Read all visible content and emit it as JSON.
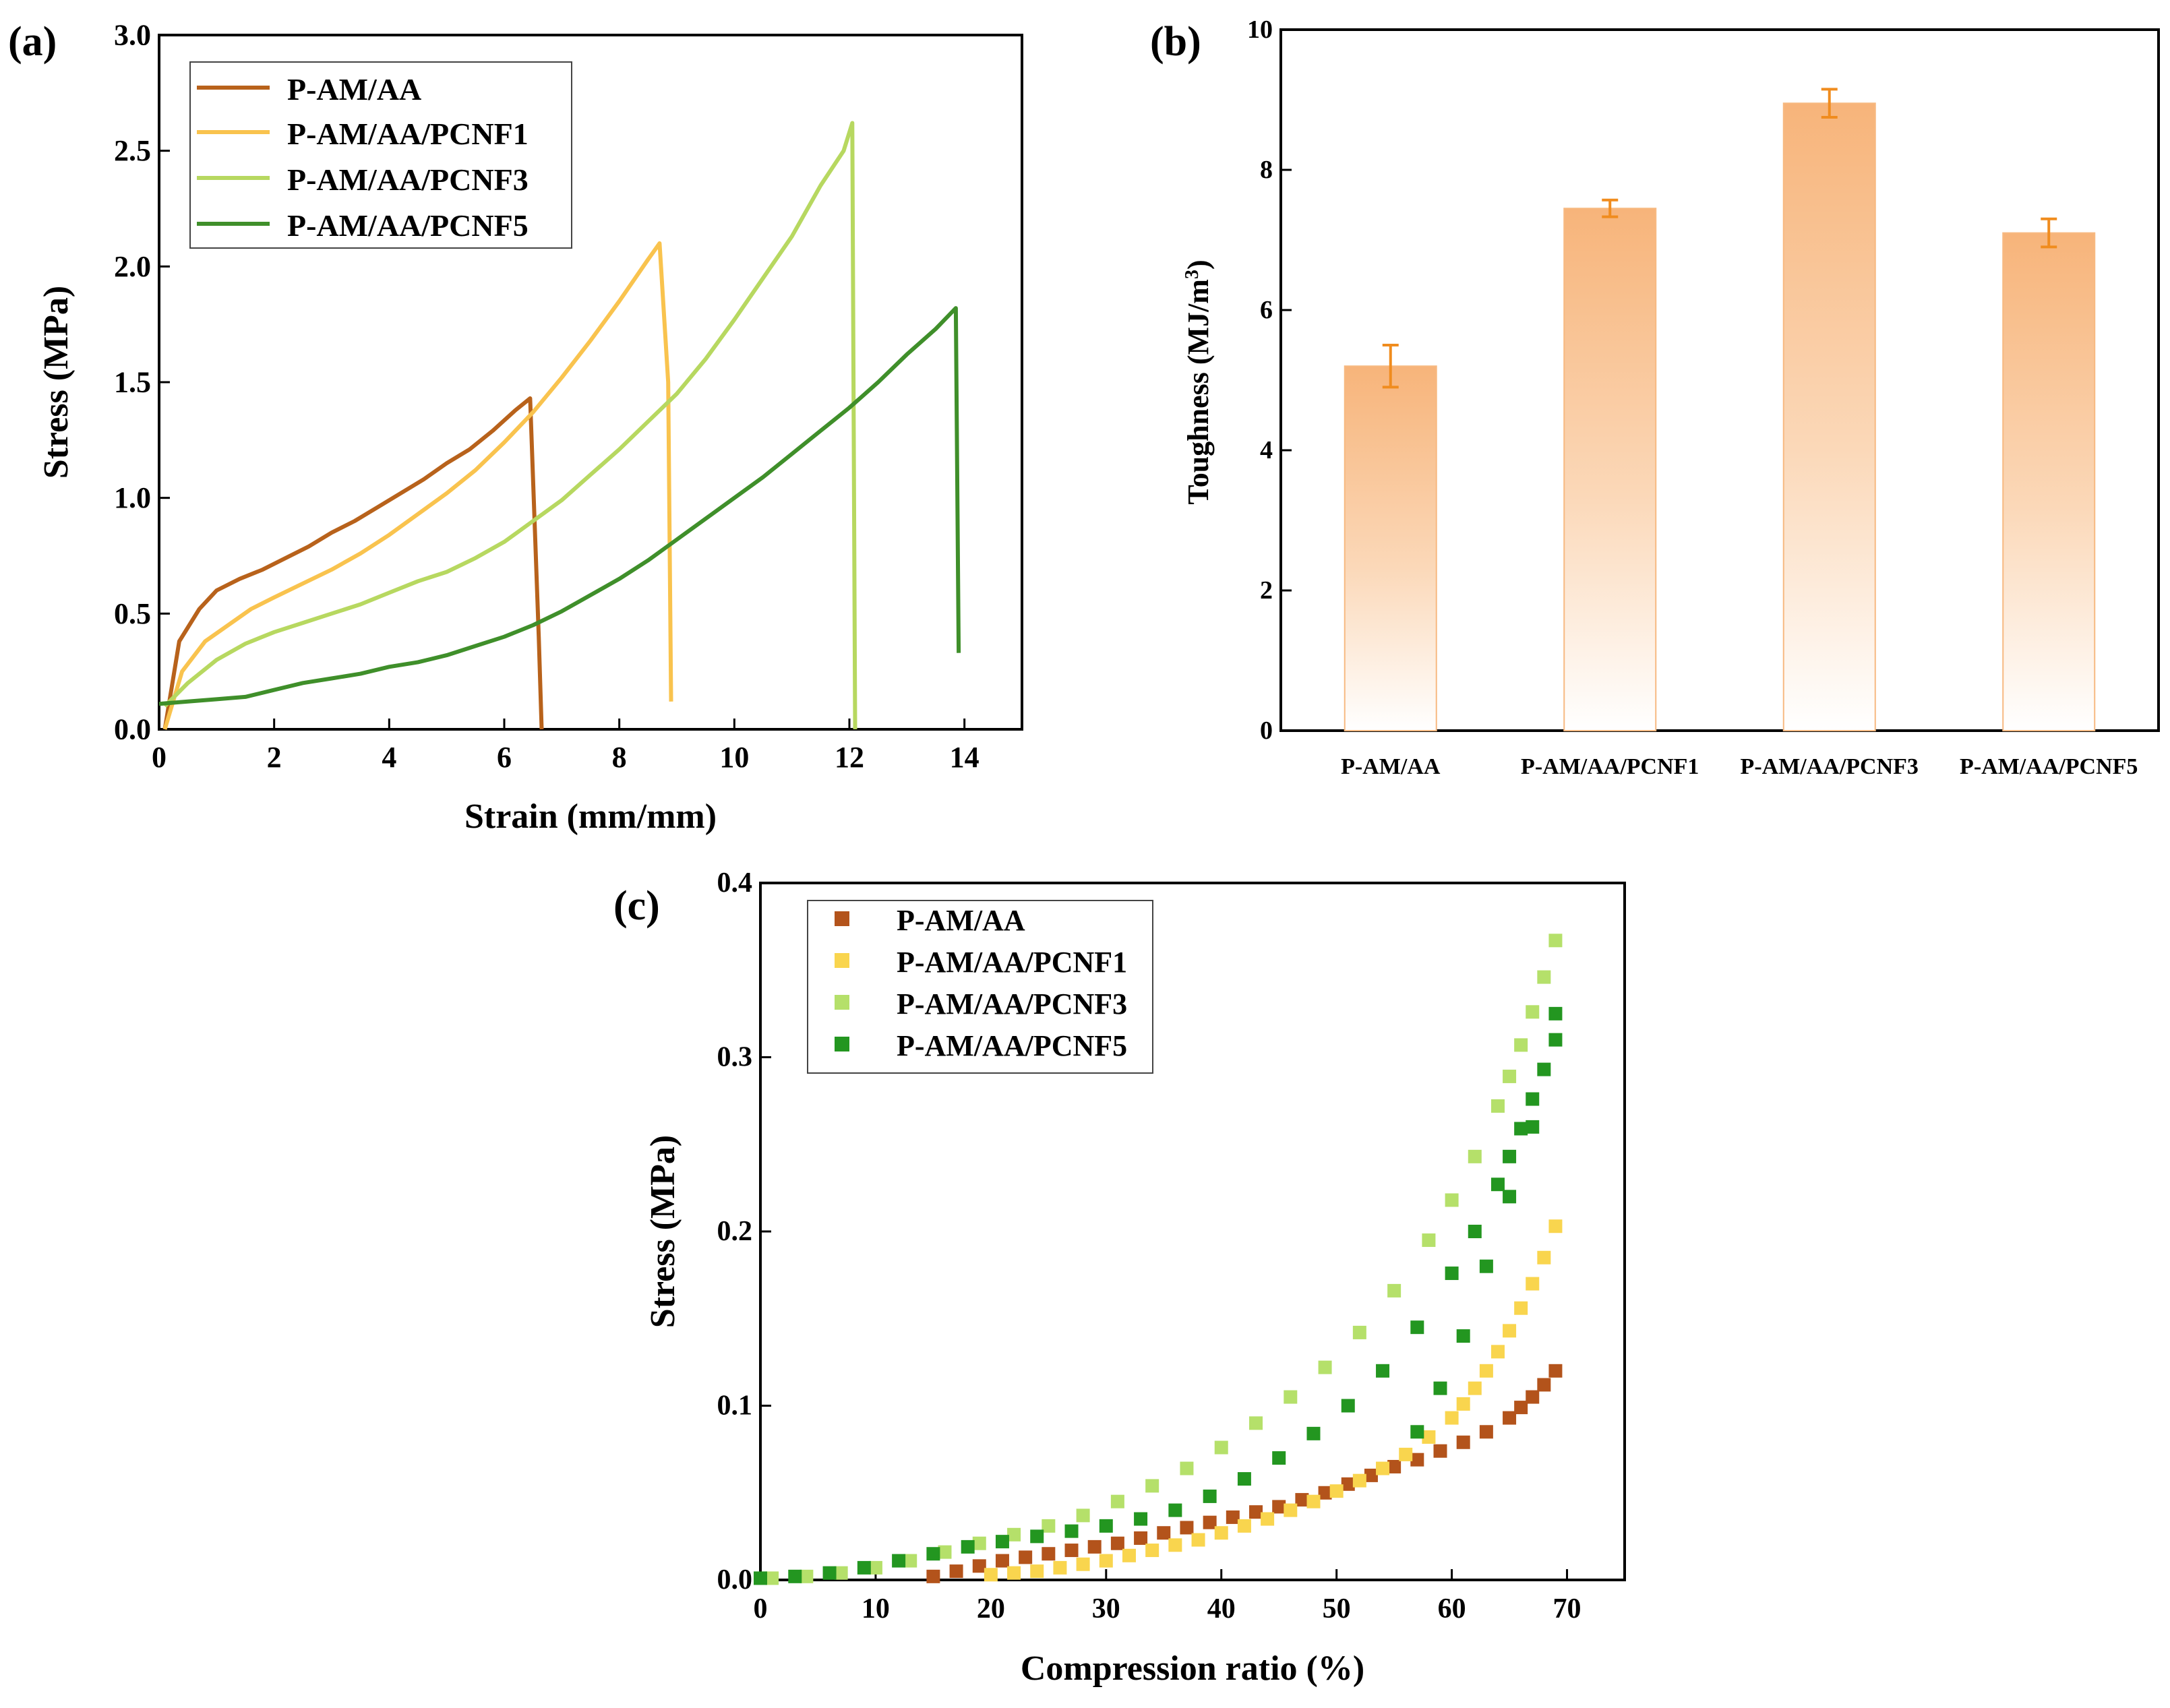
{
  "chart_data": [
    {
      "panel": "(a)",
      "type": "line",
      "xlabel": "Strain (mm/mm)",
      "ylabel": "Stress (MPa)",
      "xlim": [
        0,
        15
      ],
      "ylim": [
        0,
        3.0
      ],
      "xticks": [
        "0",
        "2",
        "4",
        "6",
        "8",
        "10",
        "12",
        "14"
      ],
      "yticks": [
        "0.0",
        "0.5",
        "1.0",
        "1.5",
        "2.0",
        "2.5",
        "3.0"
      ],
      "legend_position": "top-left",
      "series": [
        {
          "name": "P-AM/AA",
          "color": "#b8621b",
          "x": [
            0.1,
            0.35,
            0.7,
            1.0,
            1.4,
            1.8,
            2.2,
            2.6,
            3.0,
            3.4,
            3.8,
            4.2,
            4.6,
            5.0,
            5.4,
            5.8,
            6.2,
            6.45,
            6.6,
            6.65
          ],
          "y": [
            0.0,
            0.38,
            0.52,
            0.6,
            0.65,
            0.69,
            0.74,
            0.79,
            0.85,
            0.9,
            0.96,
            1.02,
            1.08,
            1.15,
            1.21,
            1.29,
            1.38,
            1.43,
            0.4,
            0.0
          ]
        },
        {
          "name": "P-AM/AA/PCNF1",
          "color": "#f9c34e",
          "x": [
            0.1,
            0.4,
            0.8,
            1.2,
            1.6,
            2.0,
            2.5,
            3.0,
            3.5,
            4.0,
            4.5,
            5.0,
            5.5,
            6.0,
            6.5,
            7.0,
            7.5,
            8.0,
            8.5,
            8.7,
            8.85,
            8.9
          ],
          "y": [
            0.0,
            0.25,
            0.38,
            0.45,
            0.52,
            0.57,
            0.63,
            0.69,
            0.76,
            0.84,
            0.93,
            1.02,
            1.12,
            1.24,
            1.37,
            1.52,
            1.68,
            1.85,
            2.03,
            2.1,
            1.5,
            0.12
          ]
        },
        {
          "name": "P-AM/AA/PCNF3",
          "color": "#b7d860",
          "x": [
            0.1,
            0.5,
            1.0,
            1.5,
            2.0,
            2.5,
            3.0,
            3.5,
            4.0,
            4.5,
            5.0,
            5.5,
            6.0,
            6.5,
            7.0,
            7.5,
            8.0,
            8.5,
            9.0,
            9.5,
            10.0,
            10.5,
            11.0,
            11.5,
            11.9,
            12.05,
            12.1
          ],
          "y": [
            0.1,
            0.2,
            0.3,
            0.37,
            0.42,
            0.46,
            0.5,
            0.54,
            0.59,
            0.64,
            0.68,
            0.74,
            0.81,
            0.9,
            0.99,
            1.1,
            1.21,
            1.33,
            1.45,
            1.6,
            1.77,
            1.95,
            2.13,
            2.35,
            2.5,
            2.62,
            0.0
          ]
        },
        {
          "name": "P-AM/AA/PCNF5",
          "color": "#3f8f2a",
          "x": [
            0.0,
            0.5,
            1.0,
            1.5,
            2.0,
            2.5,
            3.0,
            3.5,
            4.0,
            4.5,
            5.0,
            5.5,
            6.0,
            6.5,
            7.0,
            7.5,
            8.0,
            8.5,
            9.0,
            9.5,
            10.0,
            10.5,
            11.0,
            11.5,
            12.0,
            12.5,
            13.0,
            13.5,
            13.85,
            13.9
          ],
          "y": [
            0.11,
            0.12,
            0.13,
            0.14,
            0.17,
            0.2,
            0.22,
            0.24,
            0.27,
            0.29,
            0.32,
            0.36,
            0.4,
            0.45,
            0.51,
            0.58,
            0.65,
            0.73,
            0.82,
            0.91,
            1.0,
            1.09,
            1.19,
            1.29,
            1.39,
            1.5,
            1.62,
            1.73,
            1.82,
            0.33
          ]
        }
      ]
    },
    {
      "panel": "(b)",
      "type": "bar",
      "ylabel_main": "Toughness (MJ/m",
      "ylabel_sup": "3",
      "ylabel_close": ")",
      "ylim": [
        0,
        10
      ],
      "yticks": [
        "0",
        "2",
        "4",
        "6",
        "8",
        "10"
      ],
      "categories": [
        "P-AM/AA",
        "P-AM/AA/PCNF1",
        "P-AM/AA/PCNF3",
        "P-AM/AA/PCNF5"
      ],
      "values": [
        5.2,
        7.45,
        8.95,
        7.1
      ],
      "errors": [
        0.3,
        0.12,
        0.2,
        0.2
      ],
      "bar_color": "#f7b981",
      "error_color": "#f08c1e"
    },
    {
      "panel": "(c)",
      "type": "scatter",
      "xlabel": "Compression ratio (%)",
      "ylabel": "Stress (MPa)",
      "xlim": [
        0,
        75
      ],
      "ylim": [
        0,
        0.4
      ],
      "xticks": [
        "0",
        "10",
        "20",
        "30",
        "40",
        "50",
        "60",
        "70"
      ],
      "yticks": [
        "0.0",
        "0.1",
        "0.2",
        "0.3",
        "0.4"
      ],
      "legend_position": "top-left",
      "series": [
        {
          "name": "P-AM/AA",
          "color": "#b3531b",
          "x": [
            15,
            17,
            19,
            21,
            23,
            25,
            27,
            29,
            31,
            33,
            35,
            37,
            39,
            41,
            43,
            45,
            47,
            49,
            51,
            53,
            55,
            57,
            59,
            61,
            63,
            65,
            66,
            67,
            68,
            69
          ],
          "y": [
            0.002,
            0.005,
            0.008,
            0.011,
            0.013,
            0.015,
            0.017,
            0.019,
            0.021,
            0.024,
            0.027,
            0.03,
            0.033,
            0.036,
            0.039,
            0.042,
            0.046,
            0.05,
            0.055,
            0.06,
            0.065,
            0.069,
            0.074,
            0.079,
            0.085,
            0.093,
            0.099,
            0.105,
            0.112,
            0.12
          ]
        },
        {
          "name": "P-AM/AA/PCNF1",
          "color": "#f9d54e",
          "x": [
            20,
            22,
            24,
            26,
            28,
            30,
            32,
            34,
            36,
            38,
            40,
            42,
            44,
            46,
            48,
            50,
            52,
            54,
            56,
            58,
            60,
            61,
            62,
            63,
            64,
            65,
            66,
            67,
            68,
            69
          ],
          "y": [
            0.003,
            0.004,
            0.005,
            0.007,
            0.009,
            0.011,
            0.014,
            0.017,
            0.02,
            0.023,
            0.027,
            0.031,
            0.035,
            0.04,
            0.045,
            0.051,
            0.057,
            0.064,
            0.072,
            0.082,
            0.093,
            0.101,
            0.11,
            0.12,
            0.131,
            0.143,
            0.156,
            0.17,
            0.185,
            0.203
          ]
        },
        {
          "name": "P-AM/AA/PCNF3",
          "color": "#b5e06a",
          "x": [
            1,
            4,
            7,
            10,
            13,
            16,
            19,
            22,
            25,
            28,
            31,
            34,
            37,
            40,
            43,
            46,
            49,
            52,
            55,
            58,
            60,
            62,
            64,
            65,
            66,
            67,
            68,
            69
          ],
          "y": [
            0.001,
            0.002,
            0.004,
            0.007,
            0.011,
            0.016,
            0.021,
            0.026,
            0.031,
            0.037,
            0.045,
            0.054,
            0.064,
            0.076,
            0.09,
            0.105,
            0.122,
            0.142,
            0.166,
            0.195,
            0.218,
            0.243,
            0.272,
            0.289,
            0.307,
            0.326,
            0.346,
            0.367
          ]
        },
        {
          "name": "P-AM/AA/PCNF5",
          "color": "#239620",
          "x": [
            0,
            3,
            6,
            9,
            12,
            15,
            18,
            21,
            24,
            27,
            30,
            33,
            36,
            39,
            42,
            45,
            48,
            51,
            54,
            57,
            60,
            62,
            64,
            65,
            66,
            67,
            68,
            69,
            57,
            59,
            61,
            63,
            65,
            67,
            69
          ],
          "y": [
            0.001,
            0.002,
            0.004,
            0.007,
            0.011,
            0.015,
            0.019,
            0.022,
            0.025,
            0.028,
            0.031,
            0.035,
            0.04,
            0.048,
            0.058,
            0.07,
            0.084,
            0.1,
            0.12,
            0.145,
            0.176,
            0.2,
            0.227,
            0.243,
            0.259,
            0.276,
            0.293,
            0.31,
            0.085,
            0.11,
            0.14,
            0.18,
            0.22,
            0.26,
            0.325
          ]
        }
      ]
    }
  ]
}
